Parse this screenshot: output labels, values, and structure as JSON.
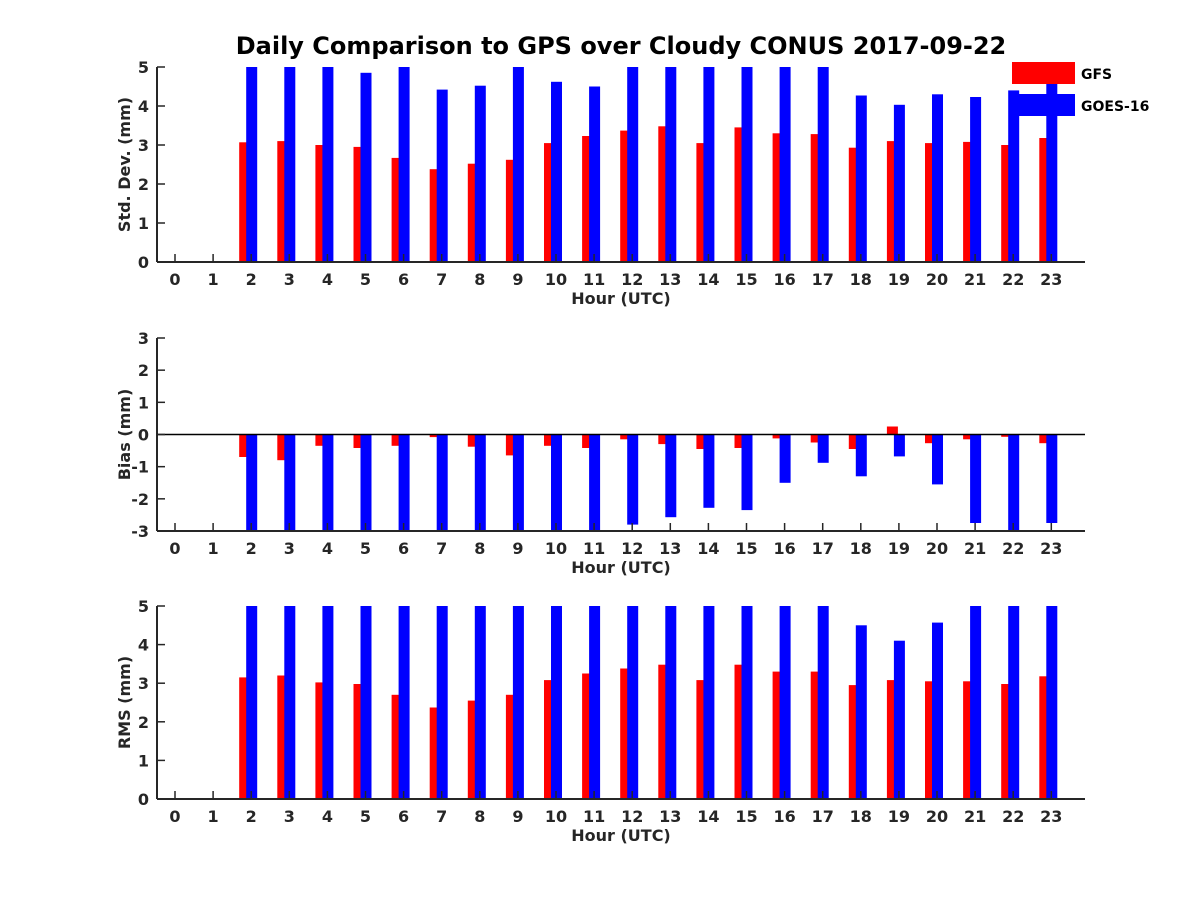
{
  "figure": {
    "title": "Daily Comparison to GPS over Cloudy CONUS 2017-09-22"
  },
  "colors": {
    "GFS": "#ff0000",
    "GOES-16": "#0000ff",
    "axis": "#262626"
  },
  "legend": {
    "placement": "top-right",
    "entries": [
      "GFS",
      "GOES-16"
    ]
  },
  "chart_data": [
    {
      "type": "bar",
      "id": "std",
      "title": "Daily Comparison to GPS over Cloudy CONUS 2017-09-22",
      "xlabel": "Hour (UTC)",
      "ylabel": "Std. Dev. (mm)",
      "ylim": [
        0,
        5
      ],
      "yticks": [
        0,
        1,
        2,
        3,
        4,
        5
      ],
      "categories": [
        0,
        1,
        2,
        3,
        4,
        5,
        6,
        7,
        8,
        9,
        10,
        11,
        12,
        13,
        14,
        15,
        16,
        17,
        18,
        19,
        20,
        21,
        22,
        23
      ],
      "grid": false,
      "series": [
        {
          "name": "GFS",
          "values": [
            null,
            null,
            3.07,
            3.1,
            3.0,
            2.95,
            2.67,
            2.38,
            2.52,
            2.62,
            3.05,
            3.23,
            3.37,
            3.48,
            3.05,
            3.45,
            3.3,
            3.28,
            2.93,
            3.1,
            3.05,
            3.08,
            3.0,
            3.18
          ]
        },
        {
          "name": "GOES-16",
          "values": [
            null,
            null,
            5.0,
            5.0,
            5.0,
            4.85,
            5.0,
            4.42,
            4.52,
            5.0,
            4.62,
            4.5,
            5.0,
            5.0,
            5.0,
            5.0,
            5.0,
            5.0,
            4.27,
            4.03,
            4.3,
            4.23,
            4.4,
            4.6
          ]
        }
      ]
    },
    {
      "type": "bar",
      "id": "bias",
      "xlabel": "Hour (UTC)",
      "ylabel": "Bias (mm)",
      "ylim": [
        -3,
        3
      ],
      "yticks": [
        -3,
        -2,
        -1,
        0,
        1,
        2,
        3
      ],
      "categories": [
        0,
        1,
        2,
        3,
        4,
        5,
        6,
        7,
        8,
        9,
        10,
        11,
        12,
        13,
        14,
        15,
        16,
        17,
        18,
        19,
        20,
        21,
        22,
        23
      ],
      "grid": false,
      "zero_line": true,
      "series": [
        {
          "name": "GFS",
          "values": [
            null,
            null,
            -0.7,
            -0.8,
            -0.35,
            -0.42,
            -0.35,
            -0.08,
            -0.38,
            -0.65,
            -0.35,
            -0.42,
            -0.15,
            -0.3,
            -0.45,
            -0.42,
            -0.12,
            -0.25,
            -0.45,
            0.25,
            -0.27,
            -0.15,
            -0.07,
            -0.27
          ]
        },
        {
          "name": "GOES-16",
          "values": [
            null,
            null,
            -3.0,
            -3.0,
            -3.0,
            -3.0,
            -3.0,
            -3.0,
            -3.0,
            -3.0,
            -3.0,
            -3.0,
            -2.8,
            -2.57,
            -2.28,
            -2.35,
            -1.5,
            -0.88,
            -1.3,
            -0.68,
            -1.55,
            -2.75,
            -3.0,
            -2.75
          ]
        }
      ]
    },
    {
      "type": "bar",
      "id": "rms",
      "xlabel": "Hour (UTC)",
      "ylabel": "RMS (mm)",
      "ylim": [
        0,
        5
      ],
      "yticks": [
        0,
        1,
        2,
        3,
        4,
        5
      ],
      "categories": [
        0,
        1,
        2,
        3,
        4,
        5,
        6,
        7,
        8,
        9,
        10,
        11,
        12,
        13,
        14,
        15,
        16,
        17,
        18,
        19,
        20,
        21,
        22,
        23
      ],
      "grid": false,
      "series": [
        {
          "name": "GFS",
          "values": [
            null,
            null,
            3.15,
            3.2,
            3.02,
            2.98,
            2.7,
            2.37,
            2.55,
            2.7,
            3.08,
            3.25,
            3.38,
            3.48,
            3.08,
            3.48,
            3.3,
            3.3,
            2.95,
            3.08,
            3.05,
            3.05,
            2.98,
            3.18
          ]
        },
        {
          "name": "GOES-16",
          "values": [
            null,
            null,
            5.0,
            5.0,
            5.0,
            5.0,
            5.0,
            5.0,
            5.0,
            5.0,
            5.0,
            5.0,
            5.0,
            5.0,
            5.0,
            5.0,
            5.0,
            5.0,
            4.5,
            4.1,
            4.57,
            5.0,
            5.0,
            5.0
          ]
        }
      ]
    }
  ]
}
